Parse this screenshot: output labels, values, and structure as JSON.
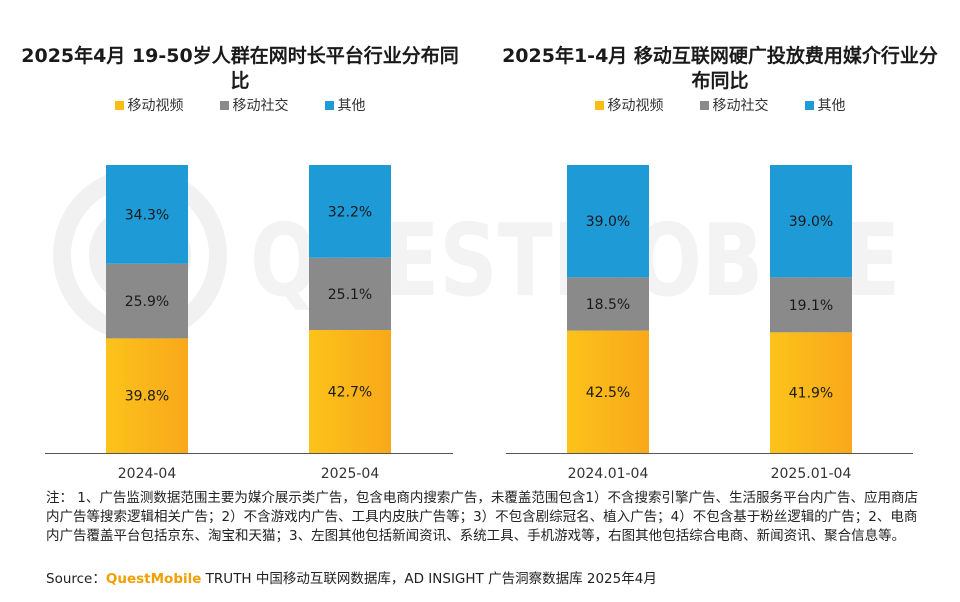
{
  "chart_data": [
    {
      "type": "bar",
      "stacked": true,
      "title": "2025年4月 19-50岁人群在网时长平台行业分布同比",
      "categories": [
        "2024-04",
        "2025-04"
      ],
      "series": [
        {
          "name": "移动视频",
          "values": [
            39.8,
            42.7
          ]
        },
        {
          "name": "移动社交",
          "values": [
            25.9,
            25.1
          ]
        },
        {
          "name": "其他",
          "values": [
            34.3,
            32.2
          ]
        }
      ],
      "value_labels": [
        [
          "39.8%",
          "42.7%"
        ],
        [
          "25.9%",
          "25.1%"
        ],
        [
          "34.3%",
          "32.2%"
        ]
      ],
      "ylim": [
        0,
        100
      ],
      "legend": "top"
    },
    {
      "type": "bar",
      "stacked": true,
      "title": "2025年1-4月 移动互联网硬广投放费用媒介行业分布同比",
      "categories": [
        "2024.01-04",
        "2025.01-04"
      ],
      "series": [
        {
          "name": "移动视频",
          "values": [
            42.5,
            41.9
          ]
        },
        {
          "name": "移动社交",
          "values": [
            18.5,
            19.1
          ]
        },
        {
          "name": "其他",
          "values": [
            39.0,
            39.0
          ]
        }
      ],
      "value_labels": [
        [
          "42.5%",
          "41.9%"
        ],
        [
          "18.5%",
          "19.1%"
        ],
        [
          "39.0%",
          "39.0%"
        ]
      ],
      "ylim": [
        0,
        100
      ],
      "legend": "top"
    }
  ],
  "colors": {
    "video": "#fbbd12",
    "social": "#8a8a8a",
    "other": "#1e9bd7"
  },
  "watermark": "QUESTMOBILE",
  "notes": {
    "text": "注： 1、广告监测数据范围主要为媒介展示类广告，包含电商内搜索广告，未覆盖范围包含1）不含搜索引擎广告、生活服务平台内广告、应用商店内广告等搜索逻辑相关广告；2）不含游戏内广告、工具内皮肤广告等；3）不包含剧综冠名、植入广告；4）不包含基于粉丝逻辑的广告；2、电商内广告覆盖平台包括京东、淘宝和天猫；3、左图其他包括新闻资讯、系统工具、手机游戏等，右图其他包括综合电商、新闻资讯、聚合信息等。"
  },
  "source": {
    "prefix": "Source：",
    "brand": "QuestMobile",
    "text": " TRUTH 中国移动互联网数据库，AD INSIGHT 广告洞察数据库 2025年4月"
  }
}
